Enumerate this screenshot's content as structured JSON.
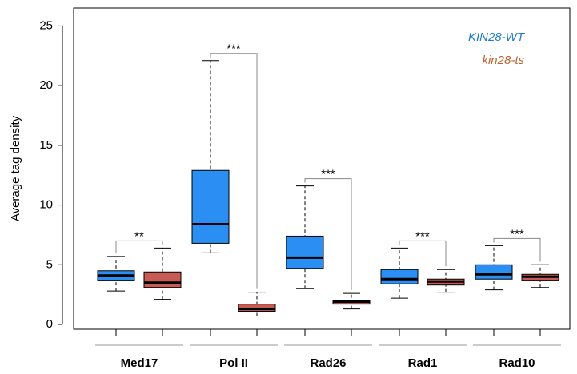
{
  "chart_data": {
    "type": "box",
    "y_label": "Average tag density",
    "categories": [
      "Med17",
      "Pol II",
      "Rad26",
      "Rad1",
      "Rad10"
    ],
    "series": [
      {
        "name": "KIN28-WT",
        "color": "#2b8ef2",
        "legend_color": "#1f7bd1",
        "stats": [
          {
            "whislo": 2.8,
            "q1": 3.7,
            "med": 4.1,
            "q3": 4.5,
            "whishi": 5.7
          },
          {
            "whislo": 6.0,
            "q1": 6.8,
            "med": 8.4,
            "q3": 12.9,
            "whishi": 22.1
          },
          {
            "whislo": 3.0,
            "q1": 4.7,
            "med": 5.6,
            "q3": 7.4,
            "whishi": 11.6
          },
          {
            "whislo": 2.2,
            "q1": 3.4,
            "med": 3.8,
            "q3": 4.6,
            "whishi": 6.4
          },
          {
            "whislo": 2.9,
            "q1": 3.8,
            "med": 4.2,
            "q3": 5.0,
            "whishi": 6.6
          }
        ]
      },
      {
        "name": "kin28-ts",
        "color": "#c85a54",
        "legend_color": "#c0622f",
        "stats": [
          {
            "whislo": 2.1,
            "q1": 3.1,
            "med": 3.5,
            "q3": 4.4,
            "whishi": 6.4
          },
          {
            "whislo": 0.7,
            "q1": 1.1,
            "med": 1.3,
            "q3": 1.7,
            "whishi": 2.7
          },
          {
            "whislo": 1.3,
            "q1": 1.7,
            "med": 1.9,
            "q3": 2.0,
            "whishi": 2.6
          },
          {
            "whislo": 2.7,
            "q1": 3.3,
            "med": 3.6,
            "q3": 3.8,
            "whishi": 4.6
          },
          {
            "whislo": 3.1,
            "q1": 3.7,
            "med": 4.0,
            "q3": 4.2,
            "whishi": 5.0
          }
        ]
      }
    ],
    "significance": [
      "**",
      "***",
      "***",
      "***",
      "***"
    ],
    "ylim": [
      -0.4,
      26.5
    ],
    "yticks": [
      0,
      5,
      10,
      15,
      20,
      25
    ],
    "legend": "upper right"
  }
}
